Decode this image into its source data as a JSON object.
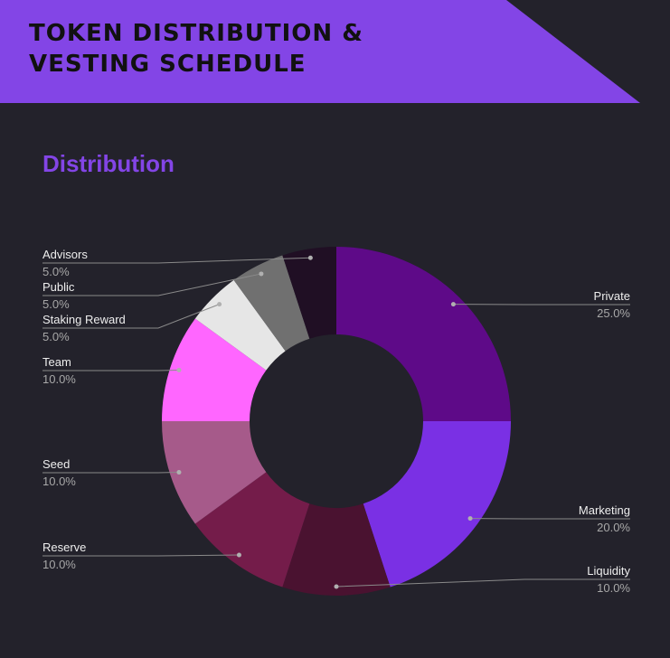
{
  "chart_data": {
    "type": "pie",
    "title": "TOKEN DISTRIBUTION & VESTING SCHEDULE",
    "subtitle": "Distribution",
    "categories": [
      "Private",
      "Marketing",
      "Liquidity",
      "Reserve",
      "Seed",
      "Team",
      "Staking Reward",
      "Public",
      "Advisors"
    ],
    "values": [
      25,
      20,
      10,
      10,
      10,
      10,
      5,
      5,
      5
    ],
    "value_labels": [
      "25.0%",
      "20.0%",
      "10.0%",
      "10.0%",
      "10.0%",
      "10.0%",
      "5.0%",
      "5.0%",
      "5.0%"
    ],
    "colors": [
      "#5e0a88",
      "#7a30e4",
      "#4a1230",
      "#741c4a",
      "#a65a8a",
      "#ff66ff",
      "#e6e6e6",
      "#707070",
      "#200f24"
    ]
  }
}
